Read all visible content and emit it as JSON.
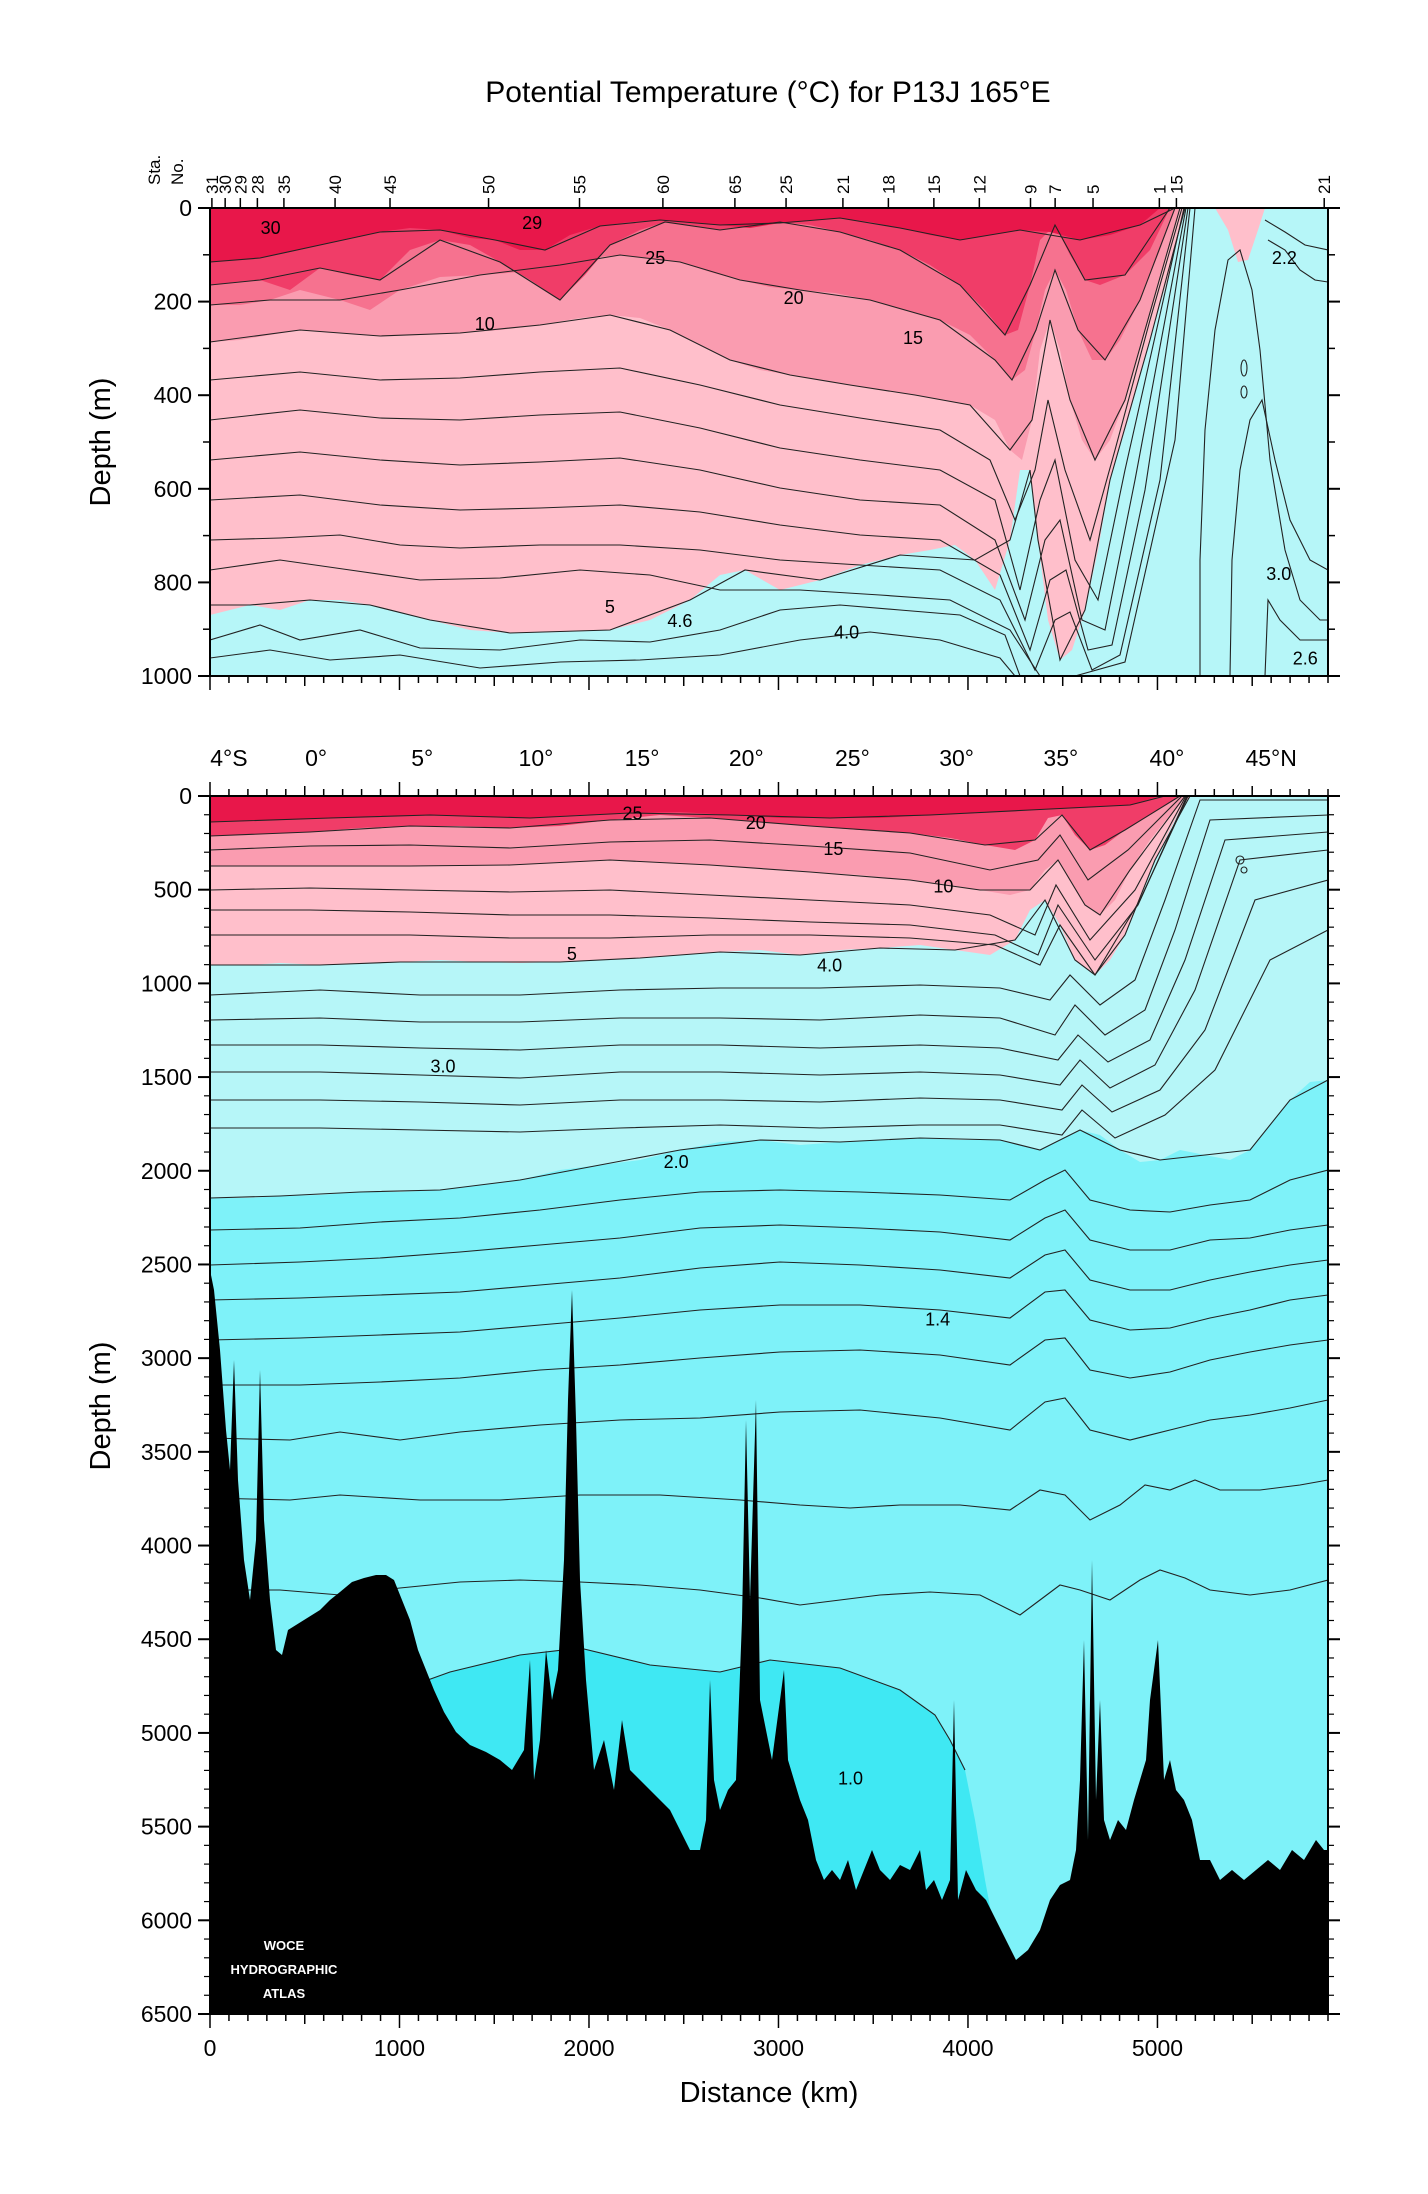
{
  "chart_data": [
    {
      "type": "heatmap",
      "title": "Potential Temperature (°C) for P13J 165°E",
      "ylabel": "Depth (m)",
      "ylim": [
        0,
        1000
      ],
      "xlim": [
        0,
        5900
      ],
      "y_ticks": [
        "0",
        "200",
        "400",
        "600",
        "800",
        "1000"
      ],
      "y_tick_values": [
        0,
        200,
        400,
        600,
        800,
        1000
      ],
      "station_label": [
        "Sta.",
        "No."
      ],
      "stations": [
        {
          "label": "31",
          "km": 10
        },
        {
          "label": "30",
          "km": 80
        },
        {
          "label": "29",
          "km": 160
        },
        {
          "label": "28",
          "km": 250
        },
        {
          "label": "35",
          "km": 390
        },
        {
          "label": "40",
          "km": 660
        },
        {
          "label": "45",
          "km": 950
        },
        {
          "label": "50",
          "km": 1470
        },
        {
          "label": "55",
          "km": 1950
        },
        {
          "label": "60",
          "km": 2390
        },
        {
          "label": "65",
          "km": 2770
        },
        {
          "label": "25",
          "km": 3040
        },
        {
          "label": "21",
          "km": 3340
        },
        {
          "label": "18",
          "km": 3580
        },
        {
          "label": "15",
          "km": 3820
        },
        {
          "label": "12",
          "km": 4060
        },
        {
          "label": "9",
          "km": 4330
        },
        {
          "label": "7",
          "km": 4460
        },
        {
          "label": "5",
          "km": 4660
        },
        {
          "label": "1",
          "km": 5010
        },
        {
          "label": "15",
          "km": 5100
        },
        {
          "label": "21",
          "km": 5880
        }
      ],
      "color_bands": [
        {
          "from": 25,
          "to": 32,
          "color": "#e8174a"
        },
        {
          "from": 15,
          "to": 25,
          "color": "#f03d68"
        },
        {
          "from": 10,
          "to": 15,
          "color": "#f6728f"
        },
        {
          "from": 6,
          "to": 10,
          "color": "#fa9cb0"
        },
        {
          "from": 4.6,
          "to": 6,
          "color": "#ffbfcb"
        },
        {
          "from": 0,
          "to": 4.6,
          "color": "#b6f6f8"
        }
      ],
      "contour_labels": [
        {
          "text": "30",
          "km": 320,
          "depth": 45
        },
        {
          "text": "29",
          "km": 1700,
          "depth": 35
        },
        {
          "text": "25",
          "km": 2350,
          "depth": 110
        },
        {
          "text": "20",
          "km": 3080,
          "depth": 195
        },
        {
          "text": "15",
          "km": 3710,
          "depth": 280
        },
        {
          "text": "10",
          "km": 1450,
          "depth": 250
        },
        {
          "text": "2.2",
          "km": 5670,
          "depth": 110
        },
        {
          "text": "3.0",
          "km": 5640,
          "depth": 785
        },
        {
          "text": "5",
          "km": 2110,
          "depth": 855
        },
        {
          "text": "4.6",
          "km": 2480,
          "depth": 885
        },
        {
          "text": "4.0",
          "km": 3360,
          "depth": 910
        },
        {
          "text": "2.6",
          "km": 5780,
          "depth": 965
        }
      ]
    },
    {
      "type": "heatmap",
      "ylabel": "Depth (m)",
      "xlabel": "Distance (km)",
      "ylim": [
        0,
        6500
      ],
      "xlim": [
        0,
        5900
      ],
      "x_ticks": [
        "0",
        "1000",
        "2000",
        "3000",
        "4000",
        "5000"
      ],
      "x_tick_values": [
        0,
        1000,
        2000,
        3000,
        4000,
        5000
      ],
      "y_ticks": [
        "0",
        "500",
        "1000",
        "1500",
        "2000",
        "2500",
        "3000",
        "3500",
        "4000",
        "4500",
        "5000",
        "5500",
        "6000",
        "6500"
      ],
      "y_tick_values": [
        0,
        500,
        1000,
        1500,
        2000,
        2500,
        3000,
        3500,
        4000,
        4500,
        5000,
        5500,
        6000,
        6500
      ],
      "latitude_ticks": [
        {
          "label": "4°S",
          "km": 100
        },
        {
          "label": "0°",
          "km": 560
        },
        {
          "label": "5°",
          "km": 1120
        },
        {
          "label": "10°",
          "km": 1720
        },
        {
          "label": "15°",
          "km": 2280
        },
        {
          "label": "20°",
          "km": 2830
        },
        {
          "label": "25°",
          "km": 3390
        },
        {
          "label": "30°",
          "km": 3940
        },
        {
          "label": "35°",
          "km": 4490
        },
        {
          "label": "40°",
          "km": 5050
        },
        {
          "label": "45°N",
          "km": 5600
        }
      ],
      "color_bands": [
        {
          "from": 20,
          "to": 32,
          "color": "#e8174a"
        },
        {
          "from": 10,
          "to": 20,
          "color": "#f03d68"
        },
        {
          "from": 6,
          "to": 10,
          "color": "#fa9cb0"
        },
        {
          "from": 4.6,
          "to": 6,
          "color": "#ffbfcb"
        },
        {
          "from": 2.2,
          "to": 4.6,
          "color": "#b6f6f8"
        },
        {
          "from": 1.0,
          "to": 2.2,
          "color": "#7ef2f9"
        },
        {
          "from": 0,
          "to": 1.0,
          "color": "#3fe8f3"
        }
      ],
      "contour_labels": [
        {
          "text": "25",
          "km": 2230,
          "depth": 100
        },
        {
          "text": "20",
          "km": 2880,
          "depth": 150
        },
        {
          "text": "15",
          "km": 3290,
          "depth": 290
        },
        {
          "text": "10",
          "km": 3870,
          "depth": 490
        },
        {
          "text": "5",
          "km": 1910,
          "depth": 850
        },
        {
          "text": "4.0",
          "km": 3270,
          "depth": 910
        },
        {
          "text": "3.0",
          "km": 1230,
          "depth": 1450
        },
        {
          "text": "2.0",
          "km": 2460,
          "depth": 1960
        },
        {
          "text": "1.4",
          "km": 3840,
          "depth": 2800
        },
        {
          "text": "1.0",
          "km": 3380,
          "depth": 5250
        }
      ],
      "watermark": [
        "WOCE",
        "HYDROGRAPHIC",
        "ATLAS"
      ]
    }
  ]
}
